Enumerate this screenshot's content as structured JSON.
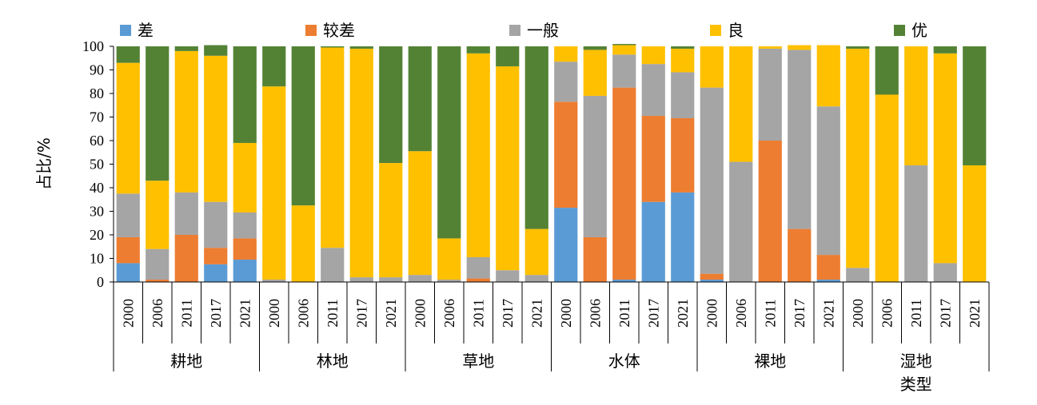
{
  "chart_data": {
    "type": "bar",
    "stacked": true,
    "ylabel": "占比/%",
    "ylim": [
      0,
      100
    ],
    "yticks": [
      0,
      10,
      20,
      30,
      40,
      50,
      60,
      70,
      80,
      90,
      100
    ],
    "xlabel": "类型",
    "legend_position": "top",
    "groups": [
      "耕地",
      "林地",
      "草地",
      "水体",
      "裸地",
      "湿地"
    ],
    "years": [
      "2000",
      "2006",
      "2011",
      "2017",
      "2021"
    ],
    "series": [
      {
        "name": "差",
        "color": "#5B9BD5",
        "values": [
          [
            8,
            0,
            0,
            7.5,
            9.5
          ],
          [
            0,
            0,
            0,
            0,
            0
          ],
          [
            0,
            0,
            0,
            0,
            0
          ],
          [
            31.5,
            0,
            1,
            34,
            38
          ],
          [
            1,
            0,
            0,
            0,
            1
          ],
          [
            0,
            0,
            0,
            0,
            0
          ]
        ]
      },
      {
        "name": "较差",
        "color": "#ED7D31",
        "values": [
          [
            11,
            1,
            20,
            7,
            9
          ],
          [
            0,
            0,
            0,
            0,
            0
          ],
          [
            0,
            0,
            1.5,
            0,
            0
          ],
          [
            45,
            19,
            81.5,
            36.5,
            31.5
          ],
          [
            2.5,
            0,
            60,
            22.5,
            10.5
          ],
          [
            0,
            0,
            0,
            0,
            0
          ]
        ]
      },
      {
        "name": "一般",
        "color": "#A5A5A5",
        "values": [
          [
            18.5,
            13,
            18,
            19.5,
            11
          ],
          [
            1,
            0,
            14.5,
            2,
            2
          ],
          [
            3,
            1,
            9,
            5,
            3
          ],
          [
            17,
            60,
            14,
            22,
            19.5
          ],
          [
            79,
            51,
            39,
            76,
            63
          ],
          [
            6,
            0,
            49.5,
            8,
            0
          ]
        ]
      },
      {
        "name": "良",
        "color": "#FFC000",
        "values": [
          [
            55.5,
            29,
            60,
            62,
            29.5
          ],
          [
            82,
            32.5,
            85,
            97,
            48.5
          ],
          [
            52.5,
            17.5,
            86.5,
            86.5,
            19.5
          ],
          [
            6.5,
            19.5,
            4,
            7.5,
            10
          ],
          [
            17.5,
            49,
            1,
            2,
            26
          ],
          [
            93,
            79.5,
            50.5,
            89,
            49.5
          ]
        ]
      },
      {
        "name": "优",
        "color": "#548235",
        "values": [
          [
            7,
            57,
            2,
            4.5,
            41
          ],
          [
            17,
            67.5,
            0.5,
            1,
            49.5
          ],
          [
            44.5,
            81.5,
            3,
            8.5,
            77.5
          ],
          [
            0,
            1.5,
            0.5,
            0,
            1
          ],
          [
            0,
            0,
            0,
            0,
            0
          ],
          [
            1,
            20.5,
            0,
            3,
            50.5
          ]
        ]
      }
    ]
  }
}
